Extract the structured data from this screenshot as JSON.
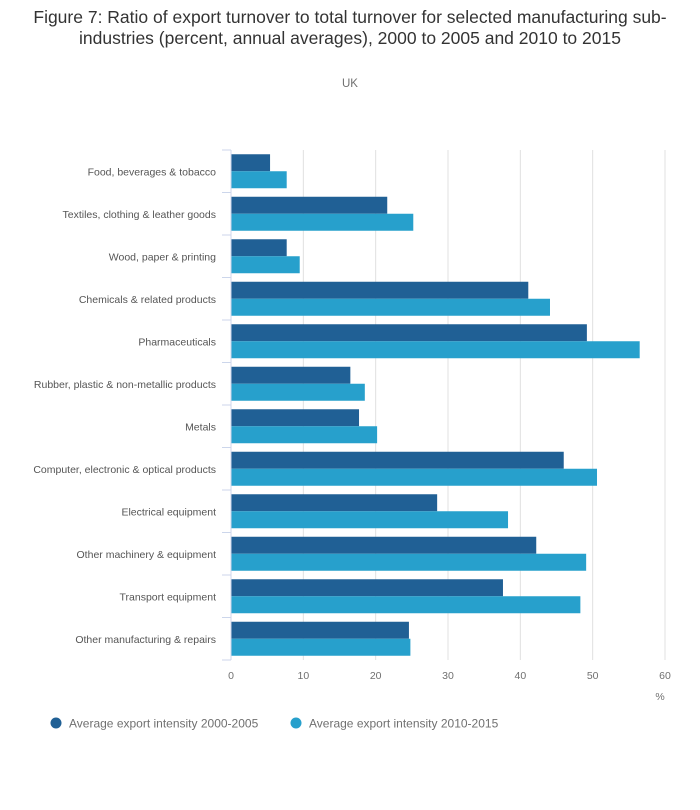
{
  "chart_data": {
    "type": "bar",
    "orientation": "horizontal",
    "title": "Figure 7: Ratio of export turnover to total turnover for selected manufacturing sub-industries (percent, annual averages), 2000 to 2005 and 2010 to 2015",
    "subtitle": "UK",
    "xlabel": "%",
    "ylabel": "",
    "xlim": [
      0,
      60
    ],
    "xticks": [
      0,
      10,
      20,
      30,
      40,
      50,
      60
    ],
    "grid": true,
    "legend_position": "bottom-left",
    "categories": [
      "Food, beverages & tobacco",
      "Textiles, clothing & leather goods",
      "Wood, paper & printing",
      "Chemicals & related products",
      "Pharmaceuticals",
      "Rubber, plastic & non-metallic products",
      "Metals",
      "Computer, electronic & optical products",
      "Electrical equipment",
      "Other machinery & equipment",
      "Transport equipment",
      "Other manufacturing & repairs"
    ],
    "series": [
      {
        "name": "Average export intensity 2000-2005",
        "color": "#206095",
        "values": [
          5.4,
          21.6,
          7.7,
          41.1,
          49.2,
          16.5,
          17.7,
          46.0,
          28.5,
          42.2,
          37.6,
          24.6
        ]
      },
      {
        "name": "Average export intensity 2010-2015",
        "color": "#27a0cc",
        "values": [
          7.7,
          25.2,
          9.5,
          44.1,
          56.5,
          18.5,
          20.2,
          50.6,
          38.3,
          49.1,
          48.3,
          24.8
        ]
      }
    ]
  }
}
